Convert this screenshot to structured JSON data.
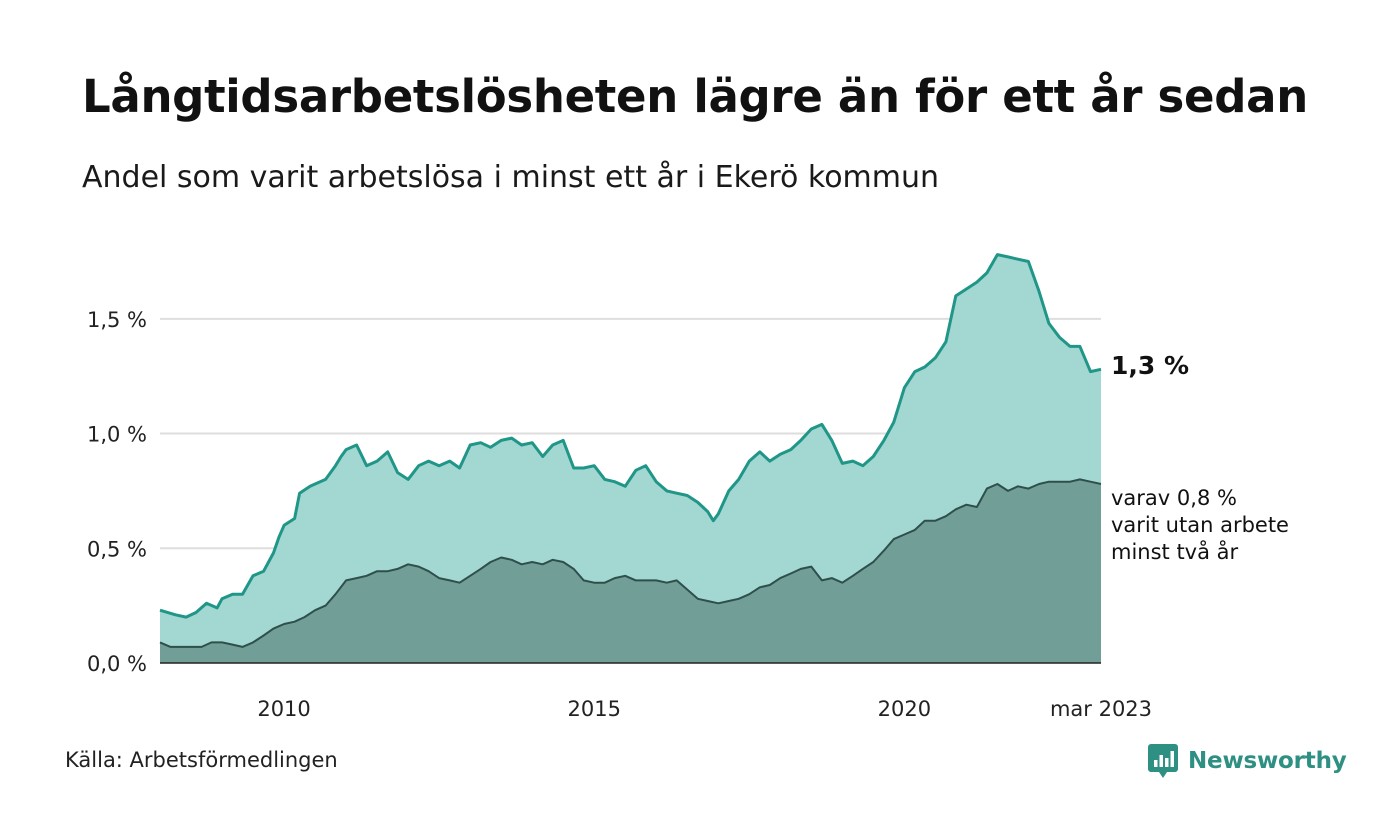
{
  "title": "Långtidsarbetslösheten lägre än för ett år sedan",
  "subtitle": "Andel som varit arbetslösa i minst ett år i Ekerö kommun",
  "source": "Källa: Arbetsförmedlingen",
  "brand": {
    "name": "Newsworthy",
    "icon": "newsworthy-logo-icon"
  },
  "colors": {
    "total_line": "#1f9688",
    "total_area": "#a3d7d1",
    "twoyear_line": "#2e4f4b",
    "twoyear_area": "#729e98",
    "grid": "#dedede"
  },
  "chart_data": {
    "type": "area",
    "x_ticks": [
      "2010",
      "2015",
      "2020",
      "mar 2023"
    ],
    "y_ticks": [
      "0,0 %",
      "0,5 %",
      "1,0 %",
      "1,5 %"
    ],
    "y_tick_values": [
      0,
      0.5,
      1.0,
      1.5
    ],
    "xlim": [
      2008.0,
      2023.17
    ],
    "ylim": [
      0,
      1.8
    ],
    "grid": true,
    "end_label_total": "1,3 %",
    "end_label_twoyear": [
      "varav 0,8 %",
      "varit utan arbete",
      "minst två år"
    ],
    "series": [
      {
        "key": "total",
        "x": [
          2008.0,
          2008.25,
          2008.42,
          2008.58,
          2008.75,
          2008.92,
          2009.0,
          2009.17,
          2009.33,
          2009.5,
          2009.67,
          2009.83,
          2009.92,
          2010.0,
          2010.17,
          2010.25,
          2010.42,
          2010.5,
          2010.67,
          2010.83,
          2010.92,
          2011.0,
          2011.17,
          2011.33,
          2011.5,
          2011.67,
          2011.83,
          2012.0,
          2012.17,
          2012.33,
          2012.5,
          2012.67,
          2012.83,
          2013.0,
          2013.17,
          2013.33,
          2013.5,
          2013.67,
          2013.83,
          2014.0,
          2014.17,
          2014.33,
          2014.5,
          2014.67,
          2014.83,
          2015.0,
          2015.17,
          2015.33,
          2015.5,
          2015.67,
          2015.83,
          2016.0,
          2016.17,
          2016.33,
          2016.5,
          2016.67,
          2016.83,
          2016.92,
          2017.0,
          2017.17,
          2017.33,
          2017.5,
          2017.67,
          2017.83,
          2018.0,
          2018.17,
          2018.33,
          2018.5,
          2018.67,
          2018.83,
          2019.0,
          2019.17,
          2019.33,
          2019.5,
          2019.67,
          2019.83,
          2020.0,
          2020.17,
          2020.33,
          2020.5,
          2020.67,
          2020.83,
          2021.0,
          2021.17,
          2021.33,
          2021.5,
          2021.67,
          2021.83,
          2022.0,
          2022.17,
          2022.33,
          2022.5,
          2022.67,
          2022.83,
          2023.0,
          2023.17
        ],
        "values": [
          0.23,
          0.21,
          0.2,
          0.22,
          0.26,
          0.24,
          0.28,
          0.3,
          0.3,
          0.38,
          0.4,
          0.48,
          0.55,
          0.6,
          0.63,
          0.74,
          0.77,
          0.78,
          0.8,
          0.86,
          0.9,
          0.93,
          0.95,
          0.86,
          0.88,
          0.92,
          0.83,
          0.8,
          0.86,
          0.88,
          0.86,
          0.88,
          0.85,
          0.95,
          0.96,
          0.94,
          0.97,
          0.98,
          0.95,
          0.96,
          0.9,
          0.95,
          0.97,
          0.85,
          0.85,
          0.86,
          0.8,
          0.79,
          0.77,
          0.84,
          0.86,
          0.79,
          0.75,
          0.74,
          0.73,
          0.7,
          0.66,
          0.62,
          0.65,
          0.75,
          0.8,
          0.88,
          0.92,
          0.88,
          0.91,
          0.93,
          0.97,
          1.02,
          1.04,
          0.97,
          0.87,
          0.88,
          0.86,
          0.9,
          0.97,
          1.05,
          1.2,
          1.27,
          1.29,
          1.33,
          1.4,
          1.6,
          1.63,
          1.66,
          1.7,
          1.78,
          1.77,
          1.76,
          1.75,
          1.62,
          1.48,
          1.42,
          1.38,
          1.38,
          1.27,
          1.28
        ]
      },
      {
        "key": "twoyear",
        "x": [
          2008.0,
          2008.17,
          2008.33,
          2008.5,
          2008.67,
          2008.83,
          2009.0,
          2009.17,
          2009.33,
          2009.5,
          2009.67,
          2009.83,
          2010.0,
          2010.17,
          2010.33,
          2010.5,
          2010.67,
          2010.83,
          2011.0,
          2011.17,
          2011.33,
          2011.5,
          2011.67,
          2011.83,
          2012.0,
          2012.17,
          2012.33,
          2012.5,
          2012.67,
          2012.83,
          2013.0,
          2013.17,
          2013.33,
          2013.5,
          2013.67,
          2013.83,
          2014.0,
          2014.17,
          2014.33,
          2014.5,
          2014.67,
          2014.83,
          2015.0,
          2015.17,
          2015.33,
          2015.5,
          2015.67,
          2015.83,
          2016.0,
          2016.17,
          2016.33,
          2016.5,
          2016.67,
          2016.83,
          2017.0,
          2017.17,
          2017.33,
          2017.5,
          2017.67,
          2017.83,
          2018.0,
          2018.17,
          2018.33,
          2018.5,
          2018.67,
          2018.83,
          2019.0,
          2019.17,
          2019.33,
          2019.5,
          2019.67,
          2019.83,
          2020.0,
          2020.17,
          2020.33,
          2020.5,
          2020.67,
          2020.83,
          2021.0,
          2021.17,
          2021.33,
          2021.5,
          2021.67,
          2021.83,
          2022.0,
          2022.17,
          2022.33,
          2022.5,
          2022.67,
          2022.83,
          2023.0,
          2023.17
        ],
        "values": [
          0.09,
          0.07,
          0.07,
          0.07,
          0.07,
          0.09,
          0.09,
          0.08,
          0.07,
          0.09,
          0.12,
          0.15,
          0.17,
          0.18,
          0.2,
          0.23,
          0.25,
          0.3,
          0.36,
          0.37,
          0.38,
          0.4,
          0.4,
          0.41,
          0.43,
          0.42,
          0.4,
          0.37,
          0.36,
          0.35,
          0.38,
          0.41,
          0.44,
          0.46,
          0.45,
          0.43,
          0.44,
          0.43,
          0.45,
          0.44,
          0.41,
          0.36,
          0.35,
          0.35,
          0.37,
          0.38,
          0.36,
          0.36,
          0.36,
          0.35,
          0.36,
          0.32,
          0.28,
          0.27,
          0.26,
          0.27,
          0.28,
          0.3,
          0.33,
          0.34,
          0.37,
          0.39,
          0.41,
          0.42,
          0.36,
          0.37,
          0.35,
          0.38,
          0.41,
          0.44,
          0.49,
          0.54,
          0.56,
          0.58,
          0.62,
          0.62,
          0.64,
          0.67,
          0.69,
          0.68,
          0.76,
          0.78,
          0.75,
          0.77,
          0.76,
          0.78,
          0.79,
          0.79,
          0.79,
          0.8,
          0.79,
          0.78
        ]
      }
    ]
  }
}
